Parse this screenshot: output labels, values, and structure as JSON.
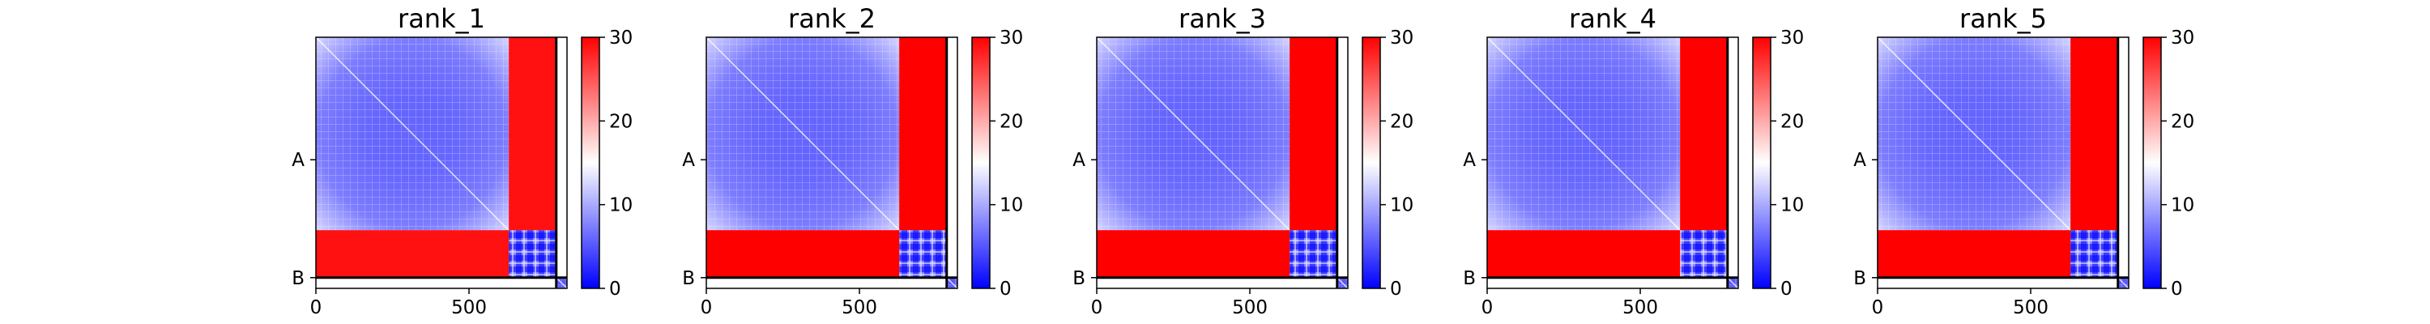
{
  "colormap": {
    "name": "bwr",
    "low": "#0000ff",
    "mid": "#ffffff",
    "high": "#ff0000"
  },
  "chart_data": [
    {
      "type": "heatmap",
      "title": "rank_1",
      "matrix_size": 820,
      "xticks": [
        0,
        500
      ],
      "yticks": [
        {
          "label": "A",
          "value": 400
        },
        {
          "label": "B",
          "value": 785
        }
      ],
      "chain_break": 785,
      "colorbar": {
        "min": 0,
        "max": 30,
        "ticks": [
          0,
          10,
          20,
          30
        ]
      },
      "blocks": [
        {
          "x0": 0,
          "x1": 630,
          "y0": 0,
          "y1": 630,
          "pattern": "diag-gradient",
          "value": 6
        },
        {
          "x0": 630,
          "x1": 785,
          "y0": 630,
          "y1": 785,
          "pattern": "noisy",
          "value": 8
        },
        {
          "x0": 630,
          "x1": 785,
          "y0": 0,
          "y1": 630,
          "value": 29
        },
        {
          "x0": 0,
          "x1": 630,
          "y0": 630,
          "y1": 785,
          "value": 29
        },
        {
          "x0": 785,
          "x1": 820,
          "y0": 785,
          "y1": 820,
          "pattern": "diag-gradient",
          "value": 5
        }
      ]
    },
    {
      "type": "heatmap",
      "title": "rank_2",
      "matrix_size": 820,
      "xticks": [
        0,
        500
      ],
      "yticks": [
        {
          "label": "A",
          "value": 400
        },
        {
          "label": "B",
          "value": 785
        }
      ],
      "chain_break": 785,
      "colorbar": {
        "min": 0,
        "max": 30,
        "ticks": [
          0,
          10,
          20,
          30
        ]
      },
      "blocks": [
        {
          "x0": 0,
          "x1": 630,
          "y0": 0,
          "y1": 630,
          "pattern": "diag-gradient",
          "value": 6
        },
        {
          "x0": 630,
          "x1": 785,
          "y0": 630,
          "y1": 785,
          "pattern": "noisy",
          "value": 8
        },
        {
          "x0": 630,
          "x1": 785,
          "y0": 0,
          "y1": 630,
          "value": 30
        },
        {
          "x0": 0,
          "x1": 630,
          "y0": 630,
          "y1": 785,
          "value": 30
        },
        {
          "x0": 785,
          "x1": 820,
          "y0": 785,
          "y1": 820,
          "pattern": "diag-gradient",
          "value": 5
        }
      ]
    },
    {
      "type": "heatmap",
      "title": "rank_3",
      "matrix_size": 820,
      "xticks": [
        0,
        500
      ],
      "yticks": [
        {
          "label": "A",
          "value": 400
        },
        {
          "label": "B",
          "value": 785
        }
      ],
      "chain_break": 785,
      "colorbar": {
        "min": 0,
        "max": 30,
        "ticks": [
          0,
          10,
          20,
          30
        ]
      },
      "blocks": [
        {
          "x0": 0,
          "x1": 630,
          "y0": 0,
          "y1": 630,
          "pattern": "diag-gradient",
          "value": 6
        },
        {
          "x0": 630,
          "x1": 785,
          "y0": 630,
          "y1": 785,
          "pattern": "noisy",
          "value": 8
        },
        {
          "x0": 630,
          "x1": 785,
          "y0": 0,
          "y1": 630,
          "value": 30
        },
        {
          "x0": 0,
          "x1": 630,
          "y0": 630,
          "y1": 785,
          "value": 30
        },
        {
          "x0": 785,
          "x1": 820,
          "y0": 785,
          "y1": 820,
          "pattern": "diag-gradient",
          "value": 5
        }
      ]
    },
    {
      "type": "heatmap",
      "title": "rank_4",
      "matrix_size": 820,
      "xticks": [
        0,
        500
      ],
      "yticks": [
        {
          "label": "A",
          "value": 400
        },
        {
          "label": "B",
          "value": 785
        }
      ],
      "chain_break": 785,
      "colorbar": {
        "min": 0,
        "max": 30,
        "ticks": [
          0,
          10,
          20,
          30
        ]
      },
      "blocks": [
        {
          "x0": 0,
          "x1": 630,
          "y0": 0,
          "y1": 630,
          "pattern": "diag-gradient",
          "value": 6
        },
        {
          "x0": 630,
          "x1": 785,
          "y0": 630,
          "y1": 785,
          "pattern": "noisy",
          "value": 8
        },
        {
          "x0": 630,
          "x1": 785,
          "y0": 0,
          "y1": 630,
          "value": 30
        },
        {
          "x0": 0,
          "x1": 630,
          "y0": 630,
          "y1": 785,
          "value": 30
        },
        {
          "x0": 785,
          "x1": 820,
          "y0": 785,
          "y1": 820,
          "pattern": "diag-gradient",
          "value": 5
        }
      ]
    },
    {
      "type": "heatmap",
      "title": "rank_5",
      "matrix_size": 820,
      "xticks": [
        0,
        500
      ],
      "yticks": [
        {
          "label": "A",
          "value": 400
        },
        {
          "label": "B",
          "value": 785
        }
      ],
      "chain_break": 785,
      "colorbar": {
        "min": 0,
        "max": 30,
        "ticks": [
          0,
          10,
          20,
          30
        ]
      },
      "blocks": [
        {
          "x0": 0,
          "x1": 630,
          "y0": 0,
          "y1": 630,
          "pattern": "diag-gradient",
          "value": 6
        },
        {
          "x0": 630,
          "x1": 785,
          "y0": 630,
          "y1": 785,
          "pattern": "noisy",
          "value": 8
        },
        {
          "x0": 630,
          "x1": 785,
          "y0": 0,
          "y1": 630,
          "value": 30
        },
        {
          "x0": 0,
          "x1": 630,
          "y0": 630,
          "y1": 785,
          "value": 30
        },
        {
          "x0": 785,
          "x1": 820,
          "y0": 785,
          "y1": 820,
          "pattern": "diag-gradient",
          "value": 5
        }
      ]
    }
  ]
}
